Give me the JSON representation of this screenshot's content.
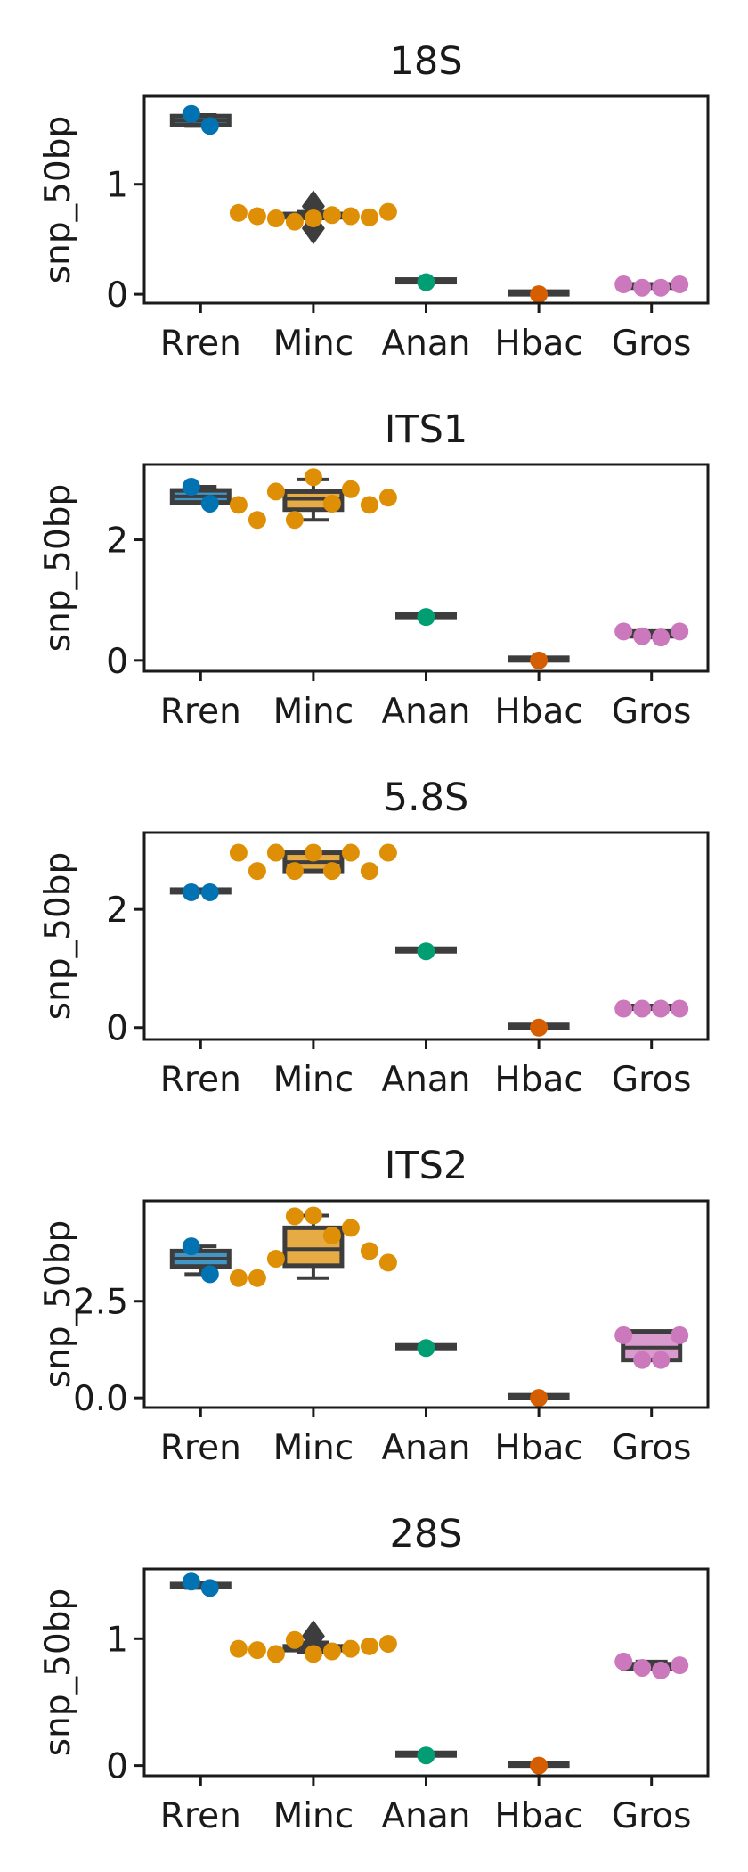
{
  "chart_data": [
    {
      "type": "box",
      "title": "18S",
      "ylabel": "snp_50bp",
      "ylim": [
        -0.08,
        1.8
      ],
      "yticks": [
        0,
        1
      ],
      "ytick_labels": [
        "0",
        "1"
      ],
      "categories": [
        "Rren",
        "Minc",
        "Anan",
        "Hbac",
        "Gros"
      ],
      "colors": [
        "#0173b2",
        "#de8f05",
        "#029e73",
        "#d55e00",
        "#cc78bc"
      ],
      "boxes": [
        {
          "q1": 1.54,
          "median": 1.58,
          "q3": 1.62,
          "whislo": 1.53,
          "whishi": 1.63,
          "fliers": []
        },
        {
          "q1": 0.7,
          "median": 0.71,
          "q3": 0.73,
          "whislo": 0.69,
          "whishi": 0.75,
          "fliers": [
            0.6,
            0.8
          ]
        },
        {
          "q1": 0.11,
          "median": 0.11,
          "q3": 0.11,
          "whislo": 0.11,
          "whishi": 0.11,
          "fliers": []
        },
        {
          "q1": 0.0,
          "median": 0.0,
          "q3": 0.0,
          "whislo": 0.0,
          "whishi": 0.0,
          "fliers": []
        },
        {
          "q1": 0.06,
          "median": 0.075,
          "q3": 0.09,
          "whislo": 0.06,
          "whishi": 0.09,
          "fliers": []
        }
      ],
      "points": [
        [
          1.64,
          1.53
        ],
        [
          0.74,
          0.71,
          0.69,
          0.66,
          0.69,
          0.72,
          0.71,
          0.7,
          0.75
        ],
        [
          0.11
        ],
        [
          0.0
        ],
        [
          0.09,
          0.06,
          0.06,
          0.09
        ]
      ]
    },
    {
      "type": "box",
      "title": "ITS1",
      "ylabel": "snp_50bp",
      "ylim": [
        -0.18,
        3.25
      ],
      "yticks": [
        0,
        2
      ],
      "ytick_labels": [
        "0",
        "2"
      ],
      "categories": [
        "Rren",
        "Minc",
        "Anan",
        "Hbac",
        "Gros"
      ],
      "colors": [
        "#0173b2",
        "#de8f05",
        "#029e73",
        "#d55e00",
        "#cc78bc"
      ],
      "boxes": [
        {
          "q1": 2.62,
          "median": 2.72,
          "q3": 2.82,
          "whislo": 2.6,
          "whishi": 2.88,
          "fliers": []
        },
        {
          "q1": 2.5,
          "median": 2.68,
          "q3": 2.8,
          "whislo": 2.33,
          "whishi": 3.0,
          "fliers": []
        },
        {
          "q1": 0.72,
          "median": 0.72,
          "q3": 0.72,
          "whislo": 0.72,
          "whishi": 0.72,
          "fliers": []
        },
        {
          "q1": 0.0,
          "median": 0.0,
          "q3": 0.0,
          "whislo": 0.0,
          "whishi": 0.0,
          "fliers": []
        },
        {
          "q1": 0.4,
          "median": 0.44,
          "q3": 0.48,
          "whislo": 0.38,
          "whishi": 0.48,
          "fliers": []
        }
      ],
      "points": [
        [
          2.88,
          2.6
        ],
        [
          2.58,
          2.33,
          2.8,
          2.33,
          3.04,
          2.6,
          2.84,
          2.58,
          2.7
        ],
        [
          0.72
        ],
        [
          0.0
        ],
        [
          0.48,
          0.4,
          0.38,
          0.48
        ]
      ]
    },
    {
      "type": "box",
      "title": "5.8S",
      "ylabel": "snp_50bp",
      "ylim": [
        -0.2,
        3.3
      ],
      "yticks": [
        0,
        2
      ],
      "ytick_labels": [
        "0",
        "2"
      ],
      "categories": [
        "Rren",
        "Minc",
        "Anan",
        "Hbac",
        "Gros"
      ],
      "colors": [
        "#0173b2",
        "#de8f05",
        "#029e73",
        "#d55e00",
        "#cc78bc"
      ],
      "boxes": [
        {
          "q1": 2.29,
          "median": 2.29,
          "q3": 2.29,
          "whislo": 2.29,
          "whishi": 2.29,
          "fliers": []
        },
        {
          "q1": 2.65,
          "median": 2.8,
          "q3": 2.96,
          "whislo": 2.65,
          "whishi": 2.96,
          "fliers": []
        },
        {
          "q1": 1.29,
          "median": 1.29,
          "q3": 1.29,
          "whislo": 1.29,
          "whishi": 1.29,
          "fliers": []
        },
        {
          "q1": 0.0,
          "median": 0.0,
          "q3": 0.0,
          "whislo": 0.0,
          "whishi": 0.0,
          "fliers": []
        },
        {
          "q1": 0.32,
          "median": 0.32,
          "q3": 0.32,
          "whislo": 0.32,
          "whishi": 0.32,
          "fliers": []
        }
      ],
      "points": [
        [
          2.29,
          2.29
        ],
        [
          2.96,
          2.65,
          2.96,
          2.65,
          2.96,
          2.65,
          2.96,
          2.65,
          2.96
        ],
        [
          1.29
        ],
        [
          0.0
        ],
        [
          0.32,
          0.32,
          0.32,
          0.32
        ]
      ]
    },
    {
      "type": "box",
      "title": "ITS2",
      "ylabel": "snp_50bp",
      "ylim": [
        -0.25,
        5.1
      ],
      "yticks": [
        0,
        2.5
      ],
      "ytick_labels": [
        "0.0",
        "2.5"
      ],
      "categories": [
        "Rren",
        "Minc",
        "Anan",
        "Hbac",
        "Gros"
      ],
      "colors": [
        "#0173b2",
        "#de8f05",
        "#029e73",
        "#d55e00",
        "#cc78bc"
      ],
      "boxes": [
        {
          "q1": 3.4,
          "median": 3.6,
          "q3": 3.8,
          "whislo": 3.2,
          "whishi": 3.92,
          "fliers": []
        },
        {
          "q1": 3.42,
          "median": 3.85,
          "q3": 4.4,
          "whislo": 3.1,
          "whishi": 4.72,
          "fliers": []
        },
        {
          "q1": 1.29,
          "median": 1.29,
          "q3": 1.29,
          "whislo": 1.29,
          "whishi": 1.29,
          "fliers": []
        },
        {
          "q1": 0.0,
          "median": 0.0,
          "q3": 0.0,
          "whislo": 0.0,
          "whishi": 0.0,
          "fliers": []
        },
        {
          "q1": 0.98,
          "median": 1.3,
          "q3": 1.72,
          "whislo": 0.98,
          "whishi": 1.72,
          "fliers": []
        }
      ],
      "points": [
        [
          3.92,
          3.2
        ],
        [
          3.1,
          3.1,
          3.6,
          4.7,
          4.72,
          4.2,
          4.4,
          3.8,
          3.5
        ],
        [
          1.29
        ],
        [
          0.0
        ],
        [
          1.62,
          0.98,
          0.98,
          1.62
        ]
      ]
    },
    {
      "type": "box",
      "title": "28S",
      "ylabel": "snp_50bp",
      "ylim": [
        -0.08,
        1.55
      ],
      "yticks": [
        0,
        1
      ],
      "ytick_labels": [
        "0",
        "1"
      ],
      "categories": [
        "Rren",
        "Minc",
        "Anan",
        "Hbac",
        "Gros"
      ],
      "colors": [
        "#0173b2",
        "#de8f05",
        "#029e73",
        "#d55e00",
        "#cc78bc"
      ],
      "boxes": [
        {
          "q1": 1.41,
          "median": 1.42,
          "q3": 1.43,
          "whislo": 1.4,
          "whishi": 1.44,
          "fliers": []
        },
        {
          "q1": 0.91,
          "median": 0.92,
          "q3": 0.94,
          "whislo": 0.89,
          "whishi": 0.97,
          "fliers": [
            1.02
          ]
        },
        {
          "q1": 0.08,
          "median": 0.08,
          "q3": 0.08,
          "whislo": 0.08,
          "whishi": 0.08,
          "fliers": []
        },
        {
          "q1": 0.0,
          "median": 0.0,
          "q3": 0.0,
          "whislo": 0.0,
          "whishi": 0.0,
          "fliers": []
        },
        {
          "q1": 0.76,
          "median": 0.78,
          "q3": 0.8,
          "whislo": 0.76,
          "whishi": 0.82,
          "fliers": []
        }
      ],
      "points": [
        [
          1.45,
          1.4
        ],
        [
          0.92,
          0.91,
          0.88,
          0.99,
          0.88,
          0.9,
          0.92,
          0.94,
          0.96
        ],
        [
          0.08
        ],
        [
          0.0
        ],
        [
          0.82,
          0.77,
          0.75,
          0.79
        ]
      ]
    }
  ]
}
